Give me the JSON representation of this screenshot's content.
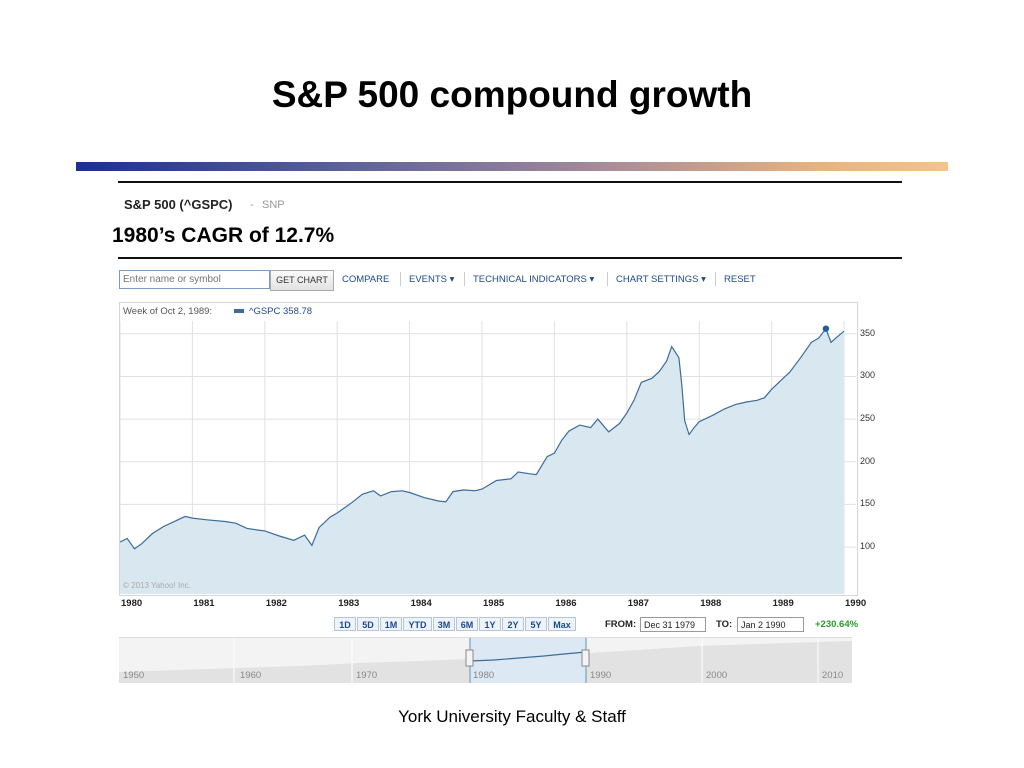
{
  "slide": {
    "title": "S&P 500 compound growth",
    "subtitle": "1980’s CAGR of 12.7%",
    "footer": "York University Faculty & Staff"
  },
  "quote": {
    "name": "S&P 500 (^GSPC)",
    "separator": "-",
    "exchange": "SNP"
  },
  "toolbar": {
    "search_placeholder": "Enter name or symbol",
    "get_chart": "GET CHART",
    "compare": "COMPARE",
    "events": "EVENTS ▾",
    "technical_indicators": "TECHNICAL INDICATORS ▾",
    "chart_settings": "CHART SETTINGS ▾",
    "reset": "RESET"
  },
  "chart": {
    "info_week": "Week of Oct 2, 1989:",
    "info_series": "^GSPC 358.78",
    "copyright": "© 2013 Yahoo! Inc.",
    "series_color": "#3c6c9a",
    "fill_color": "#d9e7f1"
  },
  "ranges": [
    "1D",
    "5D",
    "1M",
    "YTD",
    "3M",
    "6M",
    "1Y",
    "2Y",
    "5Y",
    "Max"
  ],
  "date_range": {
    "from_label": "FROM:",
    "from": "Dec 31 1979",
    "to_label": "TO:",
    "to": "Jan 2 1990",
    "change": "+230.64%"
  },
  "navigator": {
    "labels": [
      "1950",
      "1960",
      "1970",
      "1980",
      "1990",
      "2000",
      "2010"
    ]
  },
  "chart_data": {
    "type": "area",
    "x_ticks": [
      "1980",
      "1981",
      "1982",
      "1983",
      "1984",
      "1985",
      "1986",
      "1987",
      "1988",
      "1989",
      "1990"
    ],
    "y_ticks": [
      "100",
      "150",
      "200",
      "250",
      "300",
      "350"
    ],
    "ylim": [
      45,
      365
    ],
    "xlim": [
      1980,
      1990
    ],
    "grid": true,
    "series": [
      {
        "name": "^GSPC",
        "x": [
          1980.0,
          1980.1,
          1980.2,
          1980.3,
          1980.45,
          1980.6,
          1980.8,
          1980.9,
          1981.0,
          1981.2,
          1981.45,
          1981.6,
          1981.75,
          1981.9,
          1982.0,
          1982.2,
          1982.4,
          1982.55,
          1982.65,
          1982.75,
          1982.9,
          1983.0,
          1983.2,
          1983.35,
          1983.5,
          1983.6,
          1983.75,
          1983.9,
          1984.0,
          1984.2,
          1984.4,
          1984.5,
          1984.6,
          1984.75,
          1984.9,
          1985.0,
          1985.2,
          1985.4,
          1985.5,
          1985.65,
          1985.75,
          1985.9,
          1986.0,
          1986.1,
          1986.2,
          1986.35,
          1986.5,
          1986.6,
          1986.75,
          1986.9,
          1987.0,
          1987.1,
          1987.2,
          1987.35,
          1987.45,
          1987.55,
          1987.62,
          1987.72,
          1987.76,
          1987.8,
          1987.86,
          1987.93,
          1988.0,
          1988.2,
          1988.35,
          1988.5,
          1988.65,
          1988.8,
          1988.9,
          1989.0,
          1989.1,
          1989.25,
          1989.4,
          1989.55,
          1989.65,
          1989.75,
          1989.82,
          1989.9,
          1990.0
        ],
        "y": [
          106,
          110,
          98,
          104,
          116,
          124,
          132,
          136,
          134,
          132,
          130,
          128,
          122,
          120,
          119,
          113,
          108,
          114,
          102,
          123,
          135,
          140,
          152,
          162,
          166,
          160,
          165,
          166,
          164,
          158,
          154,
          153,
          165,
          167,
          166,
          168,
          178,
          180,
          188,
          186,
          185,
          206,
          210,
          225,
          236,
          243,
          240,
          250,
          235,
          245,
          257,
          272,
          293,
          298,
          306,
          318,
          335,
          322,
          290,
          248,
          232,
          240,
          247,
          255,
          262,
          267,
          270,
          272,
          275,
          285,
          293,
          305,
          322,
          340,
          345,
          356,
          340,
          346,
          353
        ]
      }
    ]
  }
}
